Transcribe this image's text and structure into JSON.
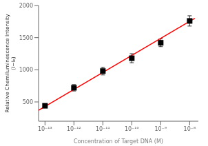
{
  "chart_data": {
    "type": "scatter",
    "xlabel": "Concentration of Target DNA (M)",
    "ylabel": "Relative Chemiluminescence Intensity\n(I−I₀)",
    "log": "x",
    "grid": false,
    "xlim": [
      6e-14,
      2e-08
    ],
    "xticks": [
      {
        "value": 1e-13,
        "label": "10⁻¹³"
      },
      {
        "value": 1e-12,
        "label": "10⁻¹²"
      },
      {
        "value": 1e-11,
        "label": "10⁻¹¹"
      },
      {
        "value": 1e-10,
        "label": "10⁻¹⁰"
      },
      {
        "value": 1e-09,
        "label": "10⁻⁹"
      },
      {
        "value": 1e-08,
        "label": "10⁻⁸"
      }
    ],
    "ylim": [
      200,
      2000
    ],
    "yticks": [
      500,
      1000,
      1500,
      2000
    ],
    "series": [
      {
        "type": "line",
        "color": "red",
        "x": [
          6e-14,
          1.5e-08
        ],
        "values": [
          370,
          1800
        ]
      },
      {
        "type": "scatter",
        "color": "black",
        "marker": "square",
        "x": [
          1e-13,
          1e-12,
          1e-11,
          1e-10,
          1e-09,
          1e-08
        ],
        "values": [
          440,
          720,
          980,
          1180,
          1420,
          1760
        ],
        "errors": [
          25,
          50,
          60,
          70,
          60,
          80
        ]
      }
    ]
  }
}
